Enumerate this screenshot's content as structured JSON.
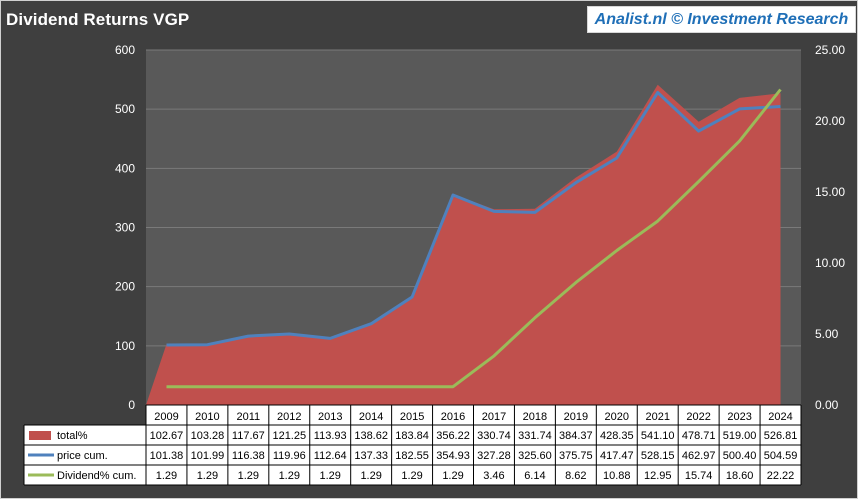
{
  "header": {
    "title": "Dividend Returns VGP",
    "brand": "Analist.nl © Investment Research"
  },
  "colors": {
    "total_fill": "#c0504d",
    "price_line": "#4f81bd",
    "dividend_line": "#9bbb59",
    "plot_bg": "#595959",
    "page_bg": "#3f3f3f"
  },
  "chart_data": {
    "type": "area",
    "title": "Dividend Returns VGP",
    "categories": [
      "2009",
      "2010",
      "2011",
      "2012",
      "2013",
      "2014",
      "2015",
      "2016",
      "2017",
      "2018",
      "2019",
      "2020",
      "2021",
      "2022",
      "2023",
      "2024"
    ],
    "left_axis": {
      "ylim": [
        0,
        600
      ],
      "ticks": [
        "0",
        "100",
        "200",
        "300",
        "400",
        "500",
        "600"
      ]
    },
    "right_axis": {
      "ylim": [
        0,
        25
      ],
      "ticks": [
        "0.00",
        "5.00",
        "10.00",
        "15.00",
        "20.00",
        "25.00"
      ]
    },
    "grid": true,
    "legend_placement": "data-table",
    "series": [
      {
        "name": "total%",
        "type": "area",
        "axis": "left",
        "values": [
          102.67,
          103.28,
          117.67,
          121.25,
          113.93,
          138.62,
          183.84,
          356.22,
          330.74,
          331.74,
          384.37,
          428.35,
          541.1,
          478.71,
          519.0,
          526.81
        ],
        "labels": [
          "102.67",
          "103.28",
          "117.67",
          "121.25",
          "113.93",
          "138.62",
          "183.84",
          "356.22",
          "330.74",
          "331.74",
          "384.37",
          "428.35",
          "541.10",
          "478.71",
          "519.00",
          "526.81"
        ]
      },
      {
        "name": "price cum.",
        "type": "line",
        "axis": "left",
        "values": [
          101.38,
          101.99,
          116.38,
          119.96,
          112.64,
          137.33,
          182.55,
          354.93,
          327.28,
          325.6,
          375.75,
          417.47,
          528.15,
          462.97,
          500.4,
          504.59
        ],
        "labels": [
          "101.38",
          "101.99",
          "116.38",
          "119.96",
          "112.64",
          "137.33",
          "182.55",
          "354.93",
          "327.28",
          "325.60",
          "375.75",
          "417.47",
          "528.15",
          "462.97",
          "500.40",
          "504.59"
        ]
      },
      {
        "name": "Dividend% cum.",
        "type": "line",
        "axis": "right",
        "values": [
          1.29,
          1.29,
          1.29,
          1.29,
          1.29,
          1.29,
          1.29,
          1.29,
          3.46,
          6.14,
          8.62,
          10.88,
          12.95,
          15.74,
          18.6,
          22.22
        ],
        "labels": [
          "1.29",
          "1.29",
          "1.29",
          "1.29",
          "1.29",
          "1.29",
          "1.29",
          "1.29",
          "3.46",
          "6.14",
          "8.62",
          "10.88",
          "12.95",
          "15.74",
          "18.60",
          "22.22"
        ]
      }
    ]
  }
}
